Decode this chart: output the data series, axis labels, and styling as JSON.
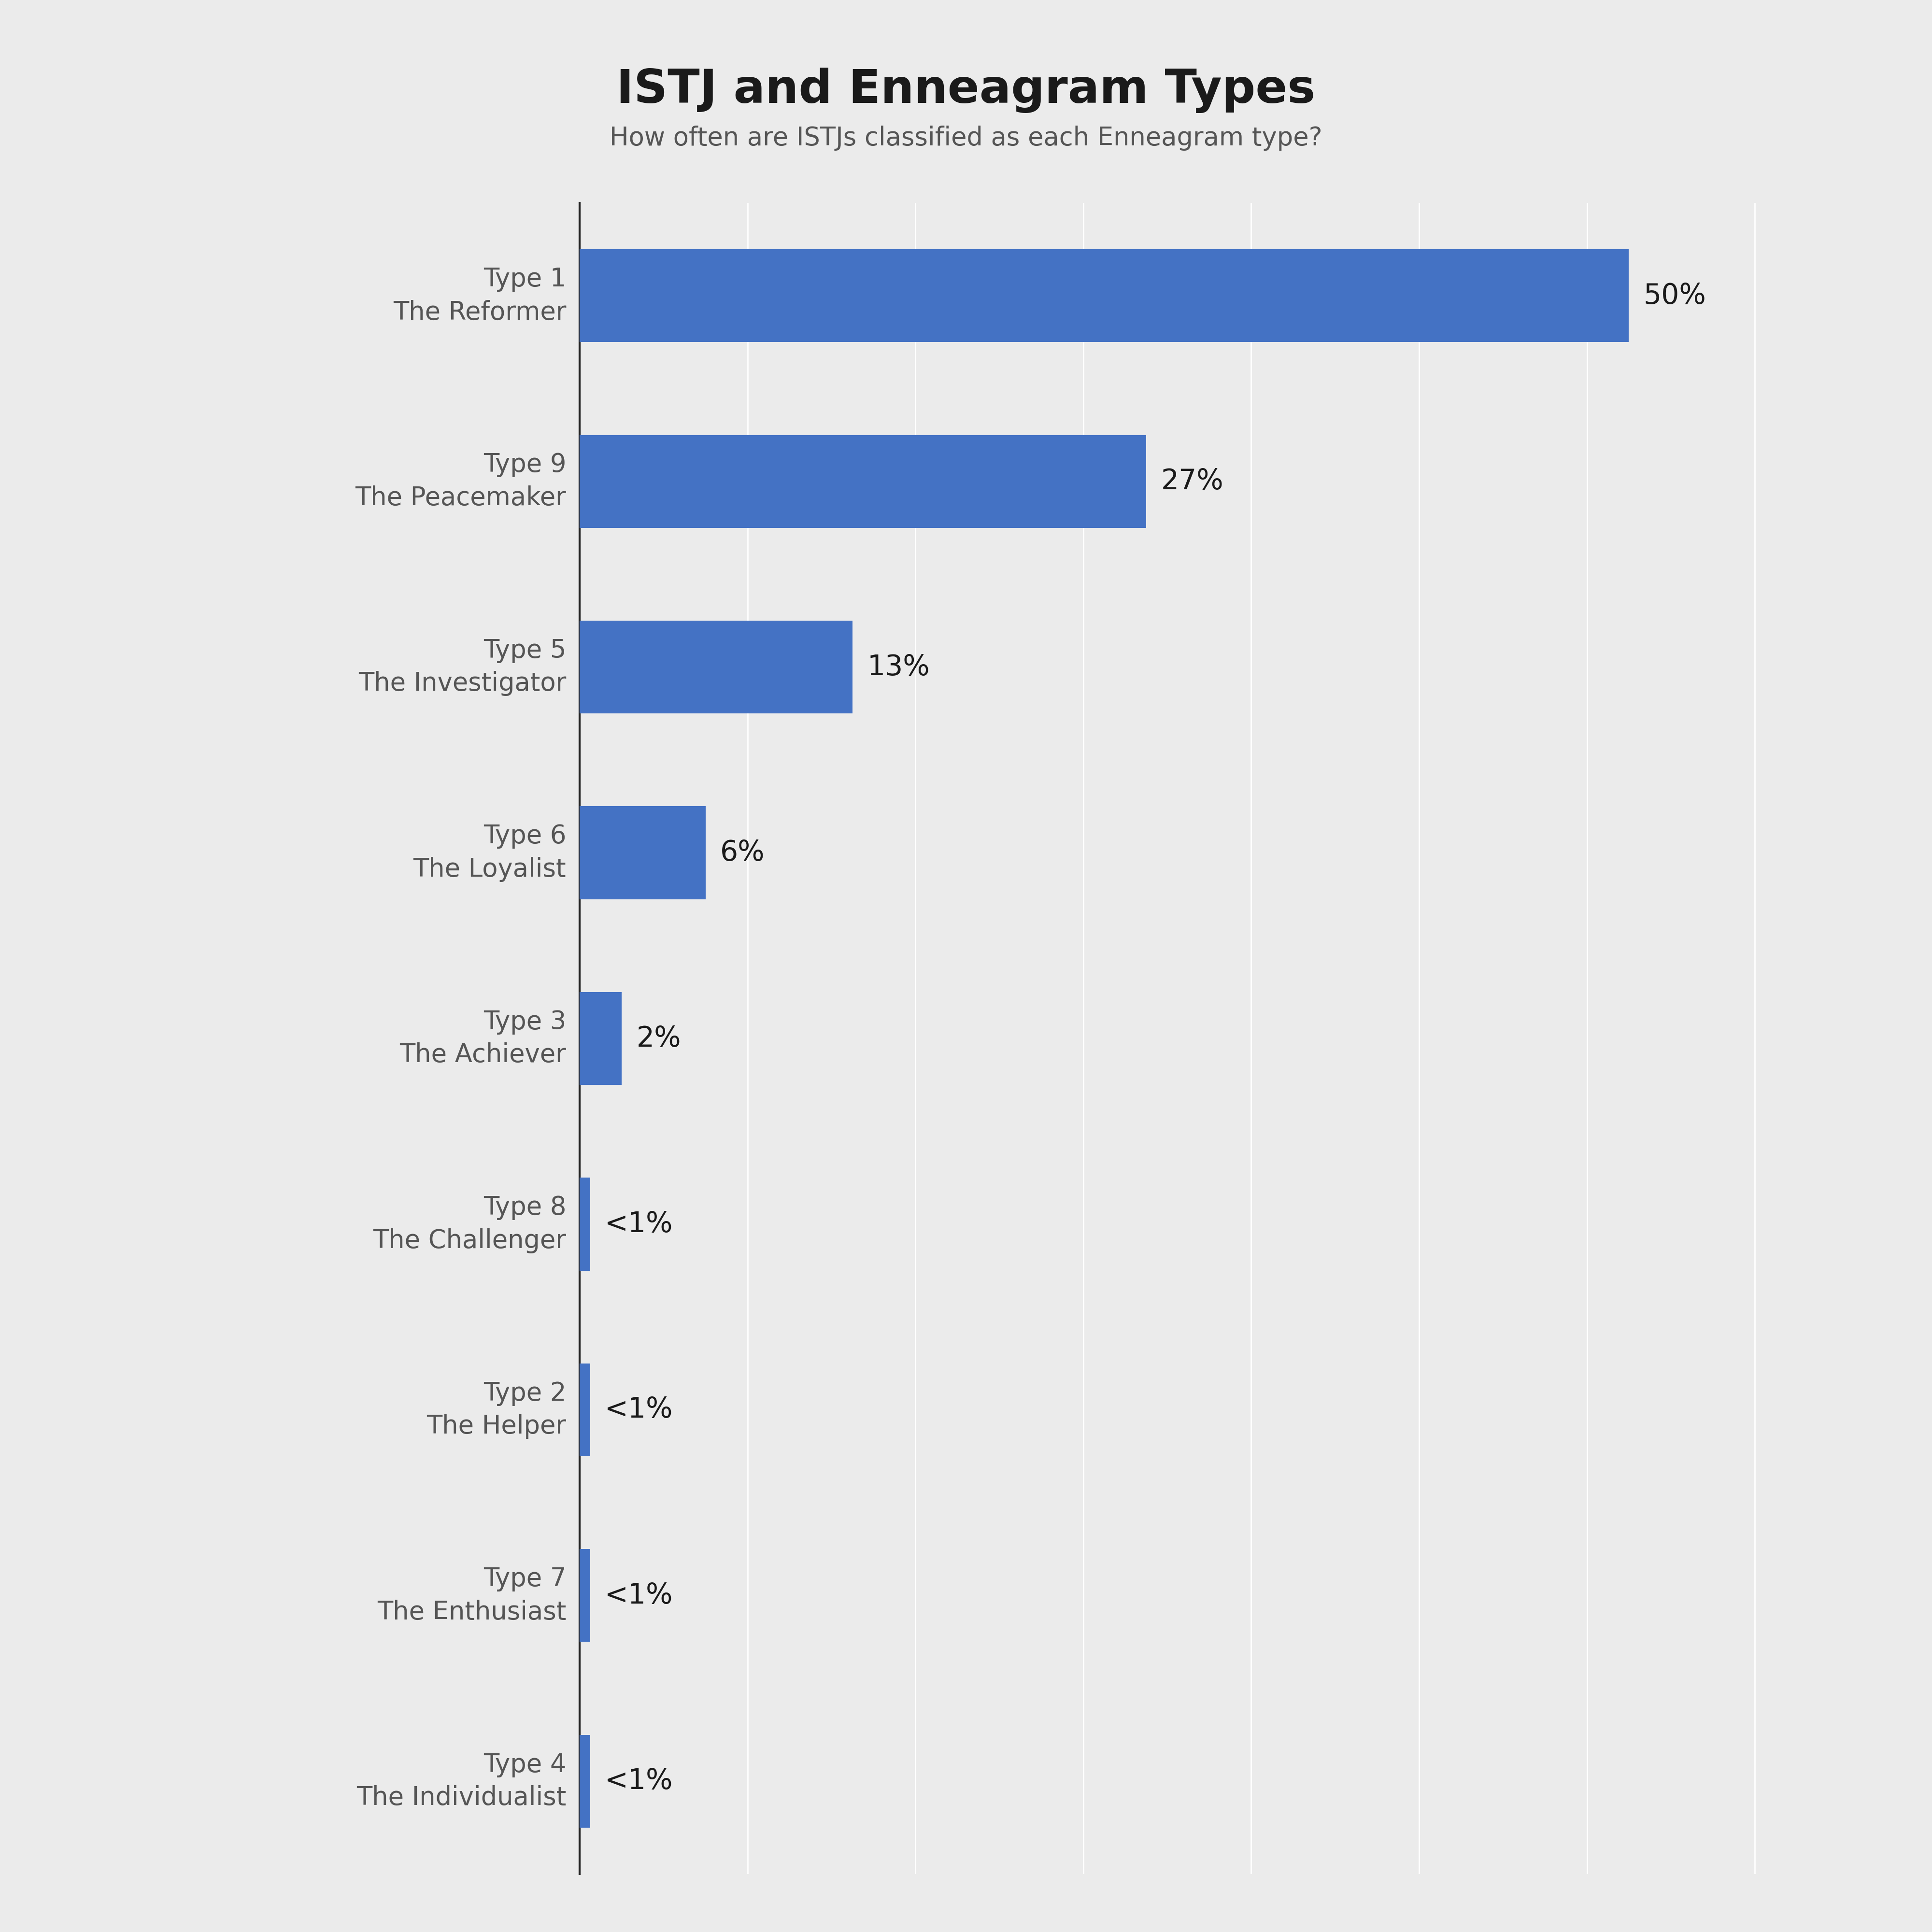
{
  "title": "ISTJ and Enneagram Types",
  "subtitle": "How often are ISTJs classified as each Enneagram type?",
  "categories": [
    "Type 1\nThe Reformer",
    "Type 9\nThe Peacemaker",
    "Type 5\nThe Investigator",
    "Type 6\nThe Loyalist",
    "Type 3\nThe Achiever",
    "Type 8\nThe Challenger",
    "Type 2\nThe Helper",
    "Type 7\nThe Enthusiast",
    "Type 4\nThe Individualist"
  ],
  "values": [
    50,
    27,
    13,
    6,
    2,
    0.5,
    0.5,
    0.5,
    0.5
  ],
  "labels": [
    "50%",
    "27%",
    "13%",
    "6%",
    "2%",
    "<1%",
    "<1%",
    "<1%",
    "<1%"
  ],
  "bar_color": "#4472C4",
  "background_color": "#EBEBEB",
  "title_color": "#1a1a1a",
  "subtitle_color": "#555555",
  "label_color": "#1a1a1a",
  "ytick_color": "#555555",
  "grid_color": "#ffffff",
  "xlim": [
    0,
    58
  ],
  "title_fontsize": 70,
  "subtitle_fontsize": 38,
  "label_fontsize": 42,
  "ytick_fontsize": 38,
  "bar_height": 0.5
}
